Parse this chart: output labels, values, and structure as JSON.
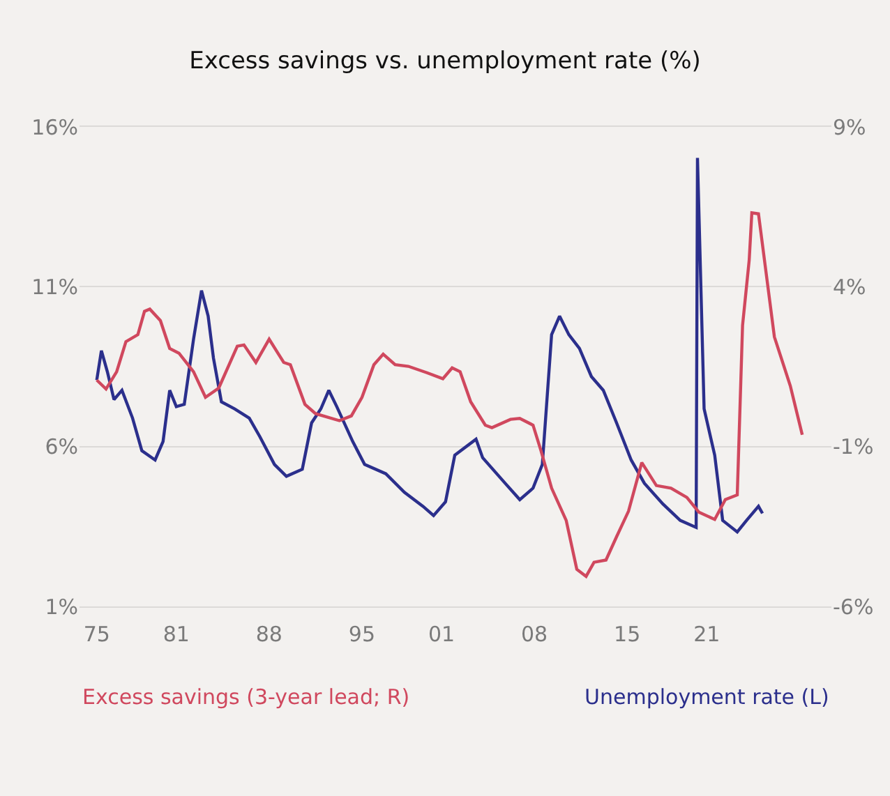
{
  "chart_data": {
    "type": "line",
    "title": "Excess savings vs. unemployment rate (%)",
    "xlim": [
      1973.7,
      2030.4
    ],
    "xticks": [
      {
        "value": 1975,
        "label": "75"
      },
      {
        "value": 1981,
        "label": "81"
      },
      {
        "value": 1988,
        "label": "88"
      },
      {
        "value": 1995,
        "label": "95"
      },
      {
        "value": 2001,
        "label": "01"
      },
      {
        "value": 2008,
        "label": "08"
      },
      {
        "value": 2015,
        "label": "15"
      },
      {
        "value": 2021,
        "label": "21"
      }
    ],
    "ylim": [
      1,
      16
    ],
    "yticks": [
      {
        "value": 1,
        "label": "1%"
      },
      {
        "value": 6,
        "label": "6%"
      },
      {
        "value": 11,
        "label": "11%"
      },
      {
        "value": 16,
        "label": "16%"
      }
    ],
    "y2lim": [
      -6,
      9
    ],
    "y2ticks": [
      {
        "value": -6,
        "label": "-6%"
      },
      {
        "value": -1,
        "label": "-1%"
      },
      {
        "value": 4,
        "label": "4%"
      },
      {
        "value": 9,
        "label": "9%"
      }
    ],
    "grid": "y",
    "series": [
      {
        "name": "Excess savings (3-year lead; R)",
        "color": "#d0485e",
        "axis": "y2",
        "x": [
          1975,
          1975.7,
          1976.5,
          1977.2,
          1978.1,
          1978.6,
          1979.0,
          1979.8,
          1980.5,
          1981.2,
          1982.3,
          1983.2,
          1984.2,
          1985.6,
          1986.1,
          1987.0,
          1988.0,
          1989.1,
          1989.6,
          1990.7,
          1991.5,
          1993.3,
          1994.2,
          1995.0,
          1995.9,
          1996.6,
          1997.5,
          1998.5,
          1999.9,
          2001.1,
          2001.8,
          2002.4,
          2003.2,
          2004.3,
          2004.8,
          2006.2,
          2006.9,
          2007.9,
          2008.5,
          2009.3,
          2010.4,
          2011.2,
          2011.9,
          2012.5,
          2013.4,
          2014.2,
          2015.1,
          2016.1,
          2017.2,
          2018.3,
          2019.5,
          2020.4,
          2021.6,
          2022.4,
          2023.3,
          2023.7,
          2024.2,
          2024.4,
          2024.9,
          2026.1,
          2027.3,
          2028.2
        ],
        "values": [
          1.08,
          0.8,
          1.34,
          2.28,
          2.5,
          3.23,
          3.3,
          2.94,
          2.07,
          1.92,
          1.34,
          0.54,
          0.83,
          2.14,
          2.18,
          1.63,
          2.36,
          1.63,
          1.56,
          0.32,
          0.03,
          -0.19,
          -0.04,
          0.54,
          1.56,
          1.89,
          1.56,
          1.51,
          1.31,
          1.12,
          1.46,
          1.34,
          0.4,
          -0.33,
          -0.41,
          -0.15,
          -0.12,
          -0.33,
          -1.13,
          -2.3,
          -3.31,
          -4.84,
          -5.06,
          -4.62,
          -4.55,
          -3.82,
          -3.02,
          -1.5,
          -2.22,
          -2.3,
          -2.59,
          -3.05,
          -3.28,
          -2.66,
          -2.51,
          2.79,
          4.83,
          6.31,
          6.28,
          2.43,
          0.9,
          -0.63
        ]
      },
      {
        "name": "Unemployment rate (L)",
        "color": "#2b2f8c",
        "x": [
          1975,
          1975.35,
          1975.8,
          1976.3,
          1976.9,
          1977.7,
          1978.4,
          1979.4,
          1980.0,
          1980.5,
          1981.0,
          1981.6,
          1982.3,
          1982.9,
          1983.4,
          1983.8,
          1984.4,
          1985.4,
          1986.5,
          1987.3,
          1988.4,
          1989.3,
          1990.5,
          1991.2,
          1991.9,
          1992.5,
          1993.1,
          1994.3,
          1995.2,
          1996.8,
          1998.2,
          1999.6,
          2000.4,
          2001.3,
          2002.0,
          2003.6,
          2004.1,
          2005.8,
          2006.9,
          2007.9,
          2008.6,
          2009.3,
          2009.9,
          2010.6,
          2011.4,
          2012.3,
          2013.2,
          2014.2,
          2015.3,
          2016.3,
          2017.7,
          2019.0,
          2020.2,
          2020.3,
          2020.8,
          2021.6,
          2022.2,
          2023.3,
          2024.0,
          2024.9,
          2025.2
        ],
        "values": [
          8.08,
          9.0,
          8.34,
          7.47,
          7.76,
          6.89,
          5.87,
          5.58,
          6.16,
          7.76,
          7.25,
          7.32,
          9.36,
          10.88,
          10.08,
          8.77,
          7.4,
          7.18,
          6.89,
          6.31,
          5.44,
          5.07,
          5.29,
          6.74,
          7.18,
          7.76,
          7.25,
          6.16,
          5.44,
          5.15,
          4.57,
          4.13,
          3.84,
          4.27,
          5.73,
          6.23,
          5.65,
          4.85,
          4.34,
          4.7,
          5.44,
          9.5,
          10.08,
          9.5,
          9.07,
          8.19,
          7.76,
          6.74,
          5.58,
          4.85,
          4.2,
          3.69,
          3.47,
          15.03,
          7.18,
          5.73,
          3.69,
          3.33,
          3.69,
          4.13,
          3.91
        ]
      }
    ]
  }
}
